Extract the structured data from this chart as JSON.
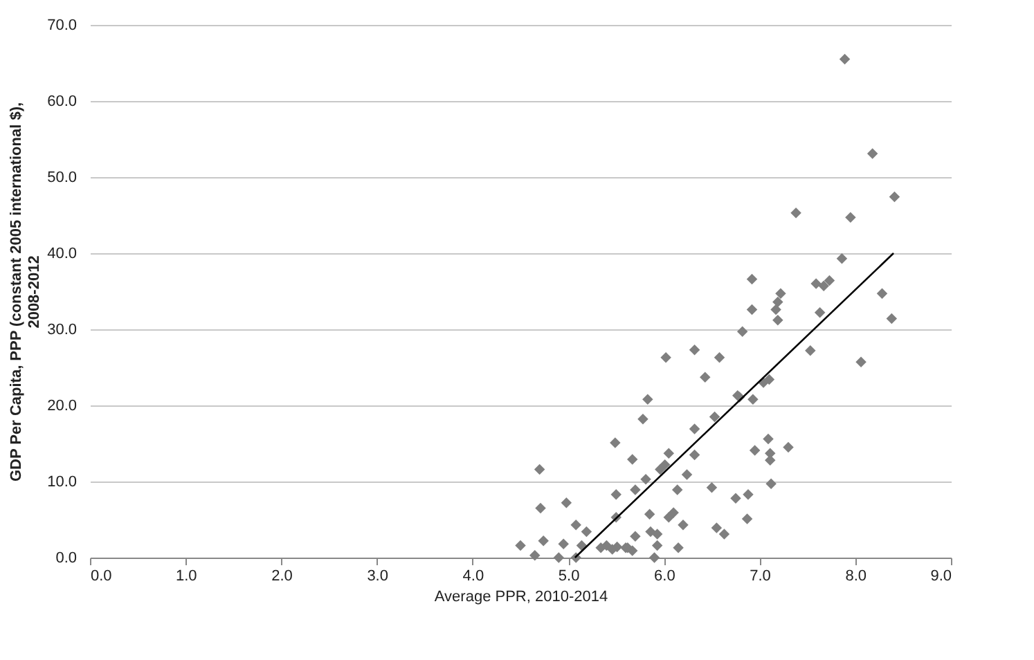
{
  "chart_data": {
    "type": "scatter",
    "xlabel": "Average PPR, 2010-2014",
    "ylabel": "GDP Per Capita, PPP (constant 2005 international $), 2008-2012",
    "xlim": [
      0,
      9
    ],
    "ylim": [
      0,
      70
    ],
    "xticks": [
      {
        "value": 0,
        "label": "0.0"
      },
      {
        "value": 1,
        "label": "1.0"
      },
      {
        "value": 2,
        "label": "2.0"
      },
      {
        "value": 3,
        "label": "3.0"
      },
      {
        "value": 4,
        "label": "4.0"
      },
      {
        "value": 5,
        "label": "5.0"
      },
      {
        "value": 6,
        "label": "6.0"
      },
      {
        "value": 7,
        "label": "7.0"
      },
      {
        "value": 8,
        "label": "8.0"
      },
      {
        "value": 9,
        "label": "9.0"
      }
    ],
    "yticks": [
      {
        "value": 0,
        "label": "0.0"
      },
      {
        "value": 10,
        "label": "10.0"
      },
      {
        "value": 20,
        "label": "20.0"
      },
      {
        "value": 30,
        "label": "30.0"
      },
      {
        "value": 40,
        "label": "40.0"
      },
      {
        "value": 50,
        "label": "50.0"
      },
      {
        "value": 60,
        "label": "60.0"
      },
      {
        "value": 70,
        "label": "70.0"
      }
    ],
    "grid": "y",
    "series": [
      {
        "marker": "diamond",
        "color": "#7f7f7f",
        "x": [
          4.5,
          4.65,
          4.74,
          4.71,
          4.7,
          4.9,
          4.95,
          4.98,
          5.08,
          5.08,
          5.19,
          5.14,
          5.34,
          5.4,
          5.46,
          5.51,
          5.6,
          5.5,
          5.5,
          5.49,
          5.67,
          5.7,
          5.7,
          5.67,
          5.62,
          5.78,
          5.83,
          5.81,
          5.85,
          5.86,
          5.93,
          5.93,
          5.9,
          5.96,
          6.01,
          6.05,
          6.02,
          6.32,
          6.58,
          6.43,
          6.53,
          6.32,
          6.32,
          6.24,
          6.14,
          6.5,
          6.75,
          6.1,
          6.05,
          6.2,
          6.15,
          6.55,
          6.63,
          6.77,
          8.18,
          8.41,
          7.38,
          7.95,
          7.86,
          6.92,
          7.59,
          7.67,
          7.73,
          8.28,
          7.22,
          7.19,
          7.17,
          7.19,
          6.92,
          7.63,
          8.38,
          6.82,
          7.89,
          7.53,
          8.06,
          7.1,
          7.04,
          6.79,
          6.93,
          7.09,
          6.95,
          7.11,
          7.11,
          7.3,
          7.12,
          6.88,
          6.87
        ],
        "values": [
          1.6,
          0.3,
          2.2,
          6.5,
          11.6,
          0,
          1.8,
          7.2,
          4.3,
          0,
          3.4,
          1.6,
          1.3,
          1.6,
          1.1,
          1.4,
          1.3,
          5.3,
          8.3,
          15.1,
          12.9,
          8.9,
          2.8,
          0.9,
          1.3,
          18.2,
          20.8,
          10.3,
          5.7,
          3.4,
          3.1,
          1.6,
          0,
          11.6,
          12.2,
          13.7,
          26.3,
          27.3,
          26.3,
          23.7,
          18.5,
          16.9,
          13.5,
          10.9,
          8.9,
          9.2,
          7.8,
          5.9,
          5.3,
          4.3,
          1.3,
          3.9,
          3.1,
          21.3,
          53.1,
          47.4,
          45.3,
          44.7,
          39.3,
          36.6,
          36.0,
          35.7,
          36.4,
          34.7,
          34.7,
          33.6,
          32.6,
          31.2,
          32.6,
          32.2,
          31.4,
          29.7,
          65.5,
          27.2,
          25.7,
          23.4,
          23.0,
          21.1,
          20.8,
          15.6,
          14.1,
          13.7,
          12.8,
          14.5,
          9.7,
          8.3,
          5.1
        ]
      },
      {
        "type": "line",
        "color": "#000000",
        "x": [
          5.07,
          8.4
        ],
        "values": [
          0,
          40
        ]
      }
    ]
  }
}
